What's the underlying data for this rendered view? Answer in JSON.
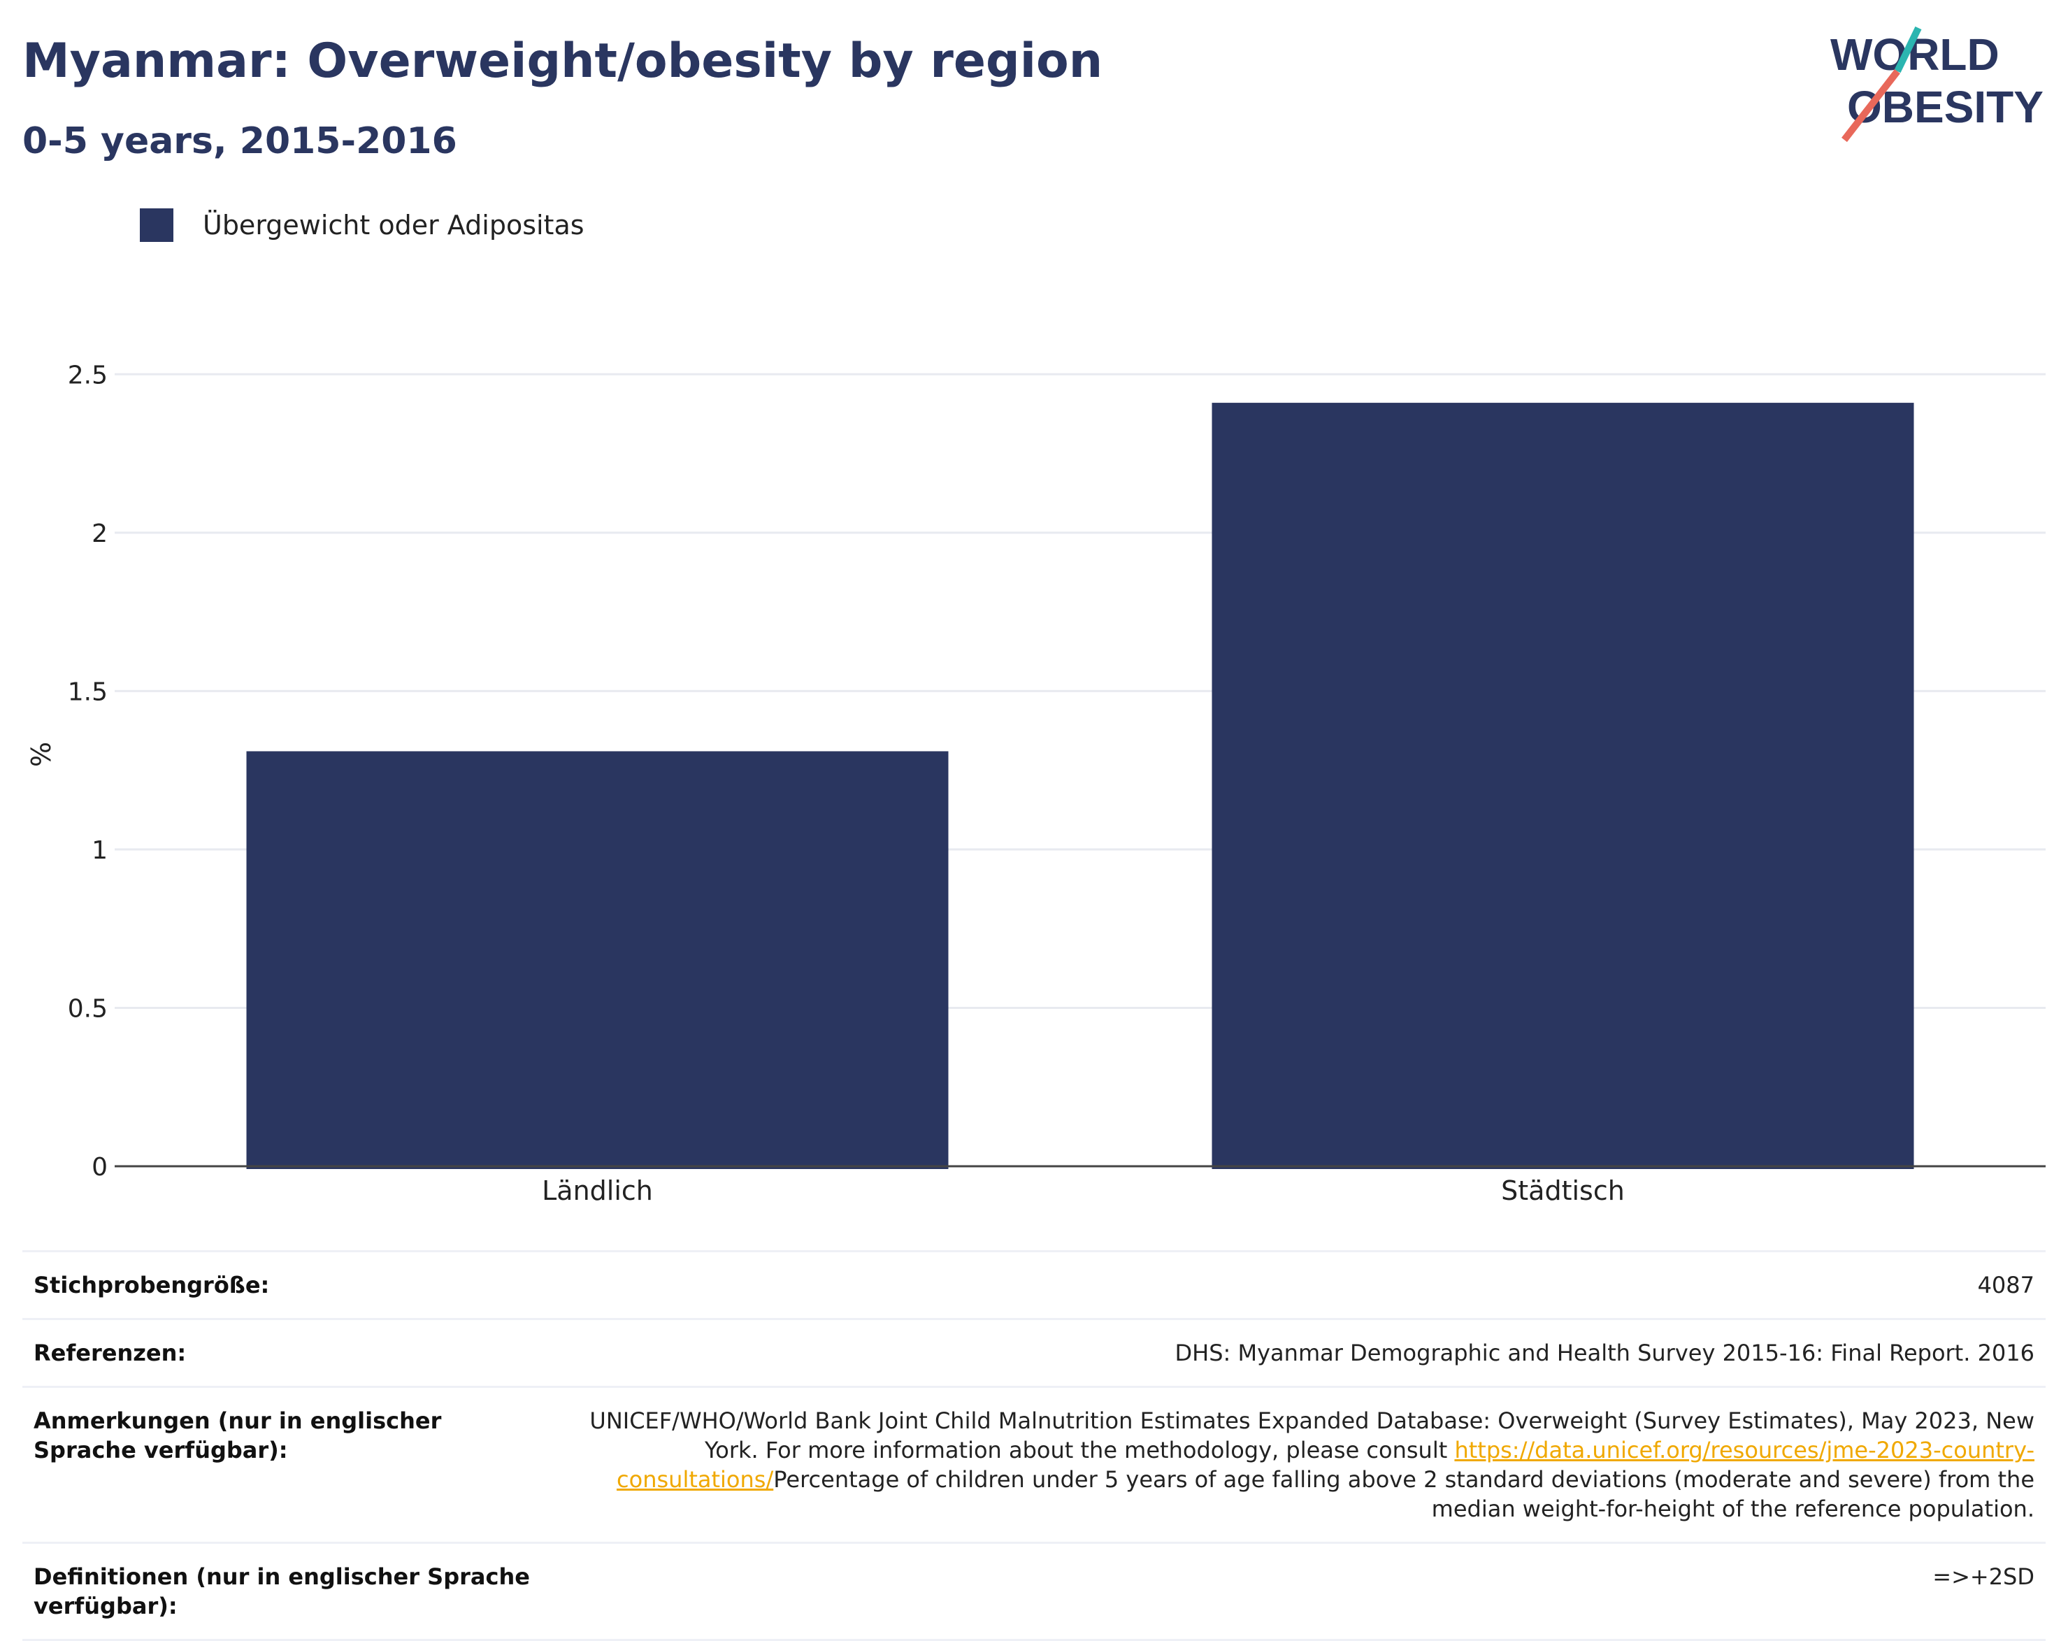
{
  "header": {
    "title": "Myanmar: Overweight/obesity by region",
    "subtitle": "0-5 years, 2015-2016"
  },
  "logo": {
    "line1": "WORLD",
    "line2": "OBESITY",
    "accent_colors": [
      "#2bb5b0",
      "#e8685a"
    ]
  },
  "legend": {
    "label": "Übergewicht oder Adipositas",
    "color": "#2a3660"
  },
  "chart_data": {
    "type": "bar",
    "categories": [
      "Ländlich",
      "Städtisch"
    ],
    "series": [
      {
        "name": "Übergewicht oder Adipositas",
        "values": [
          1.31,
          2.41
        ],
        "color": "#2a3660"
      }
    ],
    "ylabel": "%",
    "xlabel": "",
    "ylim": [
      0,
      2.6
    ],
    "yticks": [
      0,
      0.5,
      1,
      1.5,
      2,
      2.5
    ],
    "ytick_labels": [
      "0",
      "0.5",
      "1",
      "1.5",
      "2",
      "2.5"
    ],
    "grid": true,
    "legend_position": "top-left"
  },
  "info": {
    "sample_size_label": "Stichprobengröße:",
    "sample_size_value": "4087",
    "references_label": "Referenzen:",
    "references_value": "DHS: Myanmar Demographic and Health Survey 2015-16: Final Report. 2016",
    "notes_label": "Anmerkungen (nur in englischer Sprache verfügbar):",
    "notes_text_1": "UNICEF/WHO/World Bank Joint Child Malnutrition Estimates Expanded Database: Overweight (Survey Estimates), May 2023, New York. For more information about the methodology, please consult ",
    "notes_link": "https://data.unicef.org/resources/jme-2023-country-consultations/",
    "notes_text_2": "Percentage of children under 5 years of age falling above 2 standard deviations (moderate and severe) from the median weight-for-height of the reference population.",
    "definitions_label": "Definitionen (nur in englischer Sprache verfügbar):",
    "definitions_value": "=>+2SD"
  }
}
